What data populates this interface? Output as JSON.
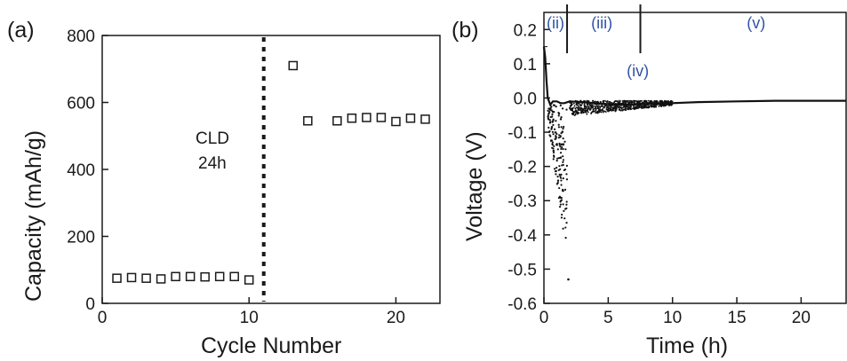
{
  "chart_data": [
    {
      "type": "scatter",
      "panel_label": "(a)",
      "xlabel": "Cycle Number",
      "ylabel": "Capacity (mAh/g)",
      "xlim": [
        0,
        23
      ],
      "ylim": [
        0,
        800
      ],
      "xticks": [
        0,
        10,
        20
      ],
      "yticks": [
        0,
        200,
        400,
        600,
        800
      ],
      "marker": "open-square",
      "annotation": {
        "line1": "CLD",
        "line2": "24h",
        "at_cycle": 11
      },
      "points": [
        {
          "x": 1,
          "y": 75
        },
        {
          "x": 2,
          "y": 77
        },
        {
          "x": 3,
          "y": 75
        },
        {
          "x": 4,
          "y": 73
        },
        {
          "x": 5,
          "y": 80
        },
        {
          "x": 6,
          "y": 80
        },
        {
          "x": 7,
          "y": 79
        },
        {
          "x": 8,
          "y": 80
        },
        {
          "x": 9,
          "y": 80
        },
        {
          "x": 10,
          "y": 70
        },
        {
          "x": 13,
          "y": 710
        },
        {
          "x": 14,
          "y": 545
        },
        {
          "x": 16,
          "y": 545
        },
        {
          "x": 17,
          "y": 553
        },
        {
          "x": 18,
          "y": 555
        },
        {
          "x": 19,
          "y": 555
        },
        {
          "x": 20,
          "y": 543
        },
        {
          "x": 21,
          "y": 553
        },
        {
          "x": 22,
          "y": 550
        }
      ]
    },
    {
      "type": "line",
      "panel_label": "(b)",
      "xlabel": "Time (h)",
      "ylabel": "Voltage (V)",
      "xlim": [
        0,
        23.5
      ],
      "ylim": [
        -0.6,
        0.25
      ],
      "xticks": [
        0,
        5,
        10,
        15,
        20
      ],
      "yticks": [
        0.2,
        0.1,
        0.0,
        -0.1,
        -0.2,
        -0.3,
        -0.4,
        -0.5,
        -0.6
      ],
      "ytick_labels": [
        "0.2",
        "0.1",
        "0.0",
        "-0.1",
        "-0.2",
        "-0.3",
        "-0.4",
        "-0.5",
        "-0.6"
      ],
      "regions": [
        {
          "label": "(ii)",
          "x": 0.9,
          "position": "top"
        },
        {
          "label": "(iii)",
          "x": 4.5,
          "position": "top"
        },
        {
          "label": "(iv)",
          "x": 7.3,
          "position": "below-divider"
        },
        {
          "label": "(v)",
          "x": 16.5,
          "position": "top"
        }
      ],
      "dividers": [
        1.8,
        7.5
      ],
      "series": [
        {
          "type": "line",
          "x": [
            0.0,
            0.1,
            0.2,
            0.3,
            0.5,
            0.7,
            1.0,
            1.3,
            1.6,
            2.0,
            3,
            4,
            5,
            6,
            8,
            10,
            12,
            15,
            18,
            20,
            22,
            23.5
          ],
          "y": [
            0.15,
            0.12,
            0.05,
            0.0,
            -0.02,
            -0.01,
            -0.01,
            -0.015,
            -0.015,
            -0.01,
            -0.012,
            -0.015,
            -0.018,
            -0.02,
            -0.018,
            -0.015,
            -0.012,
            -0.01,
            -0.008,
            -0.008,
            -0.008,
            -0.008
          ]
        },
        {
          "type": "scatter",
          "x_range": [
            0.3,
            1.9
          ],
          "y_range": [
            -0.53,
            -0.02
          ],
          "extreme_point": {
            "x": 1.9,
            "y": -0.53
          }
        },
        {
          "type": "scatter",
          "x_range": [
            2.0,
            10.0
          ],
          "y_range": [
            -0.05,
            0.0
          ]
        }
      ]
    }
  ]
}
